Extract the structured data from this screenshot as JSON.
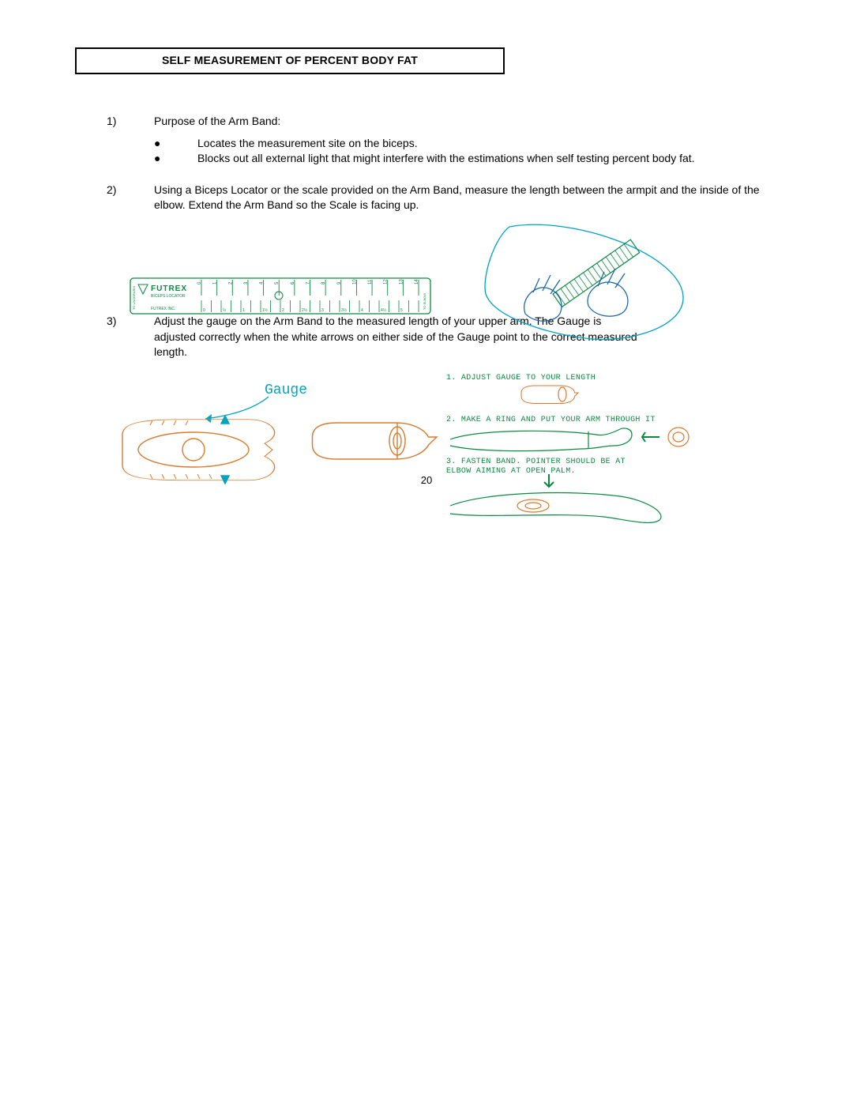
{
  "title": "SELF MEASUREMENT OF PERCENT BODY FAT",
  "page_number": "20",
  "items": {
    "i1": {
      "num": "1)",
      "text": "Purpose of the Arm Band:"
    },
    "b1": "Locates the measurement site on the biceps.",
    "b2": "Blocks out all external light that might interfere with the estimations when self testing percent body fat.",
    "i2": {
      "num": "2)",
      "text": "Using a Biceps Locator or the scale provided on the Arm Band, measure the length between the armpit and the inside of the elbow.  Extend the Arm Band so the Scale is facing up."
    },
    "i3": {
      "num": "3)",
      "text": "Adjust the gauge on the Arm Band to the measured length of your upper arm.  The Gauge is adjusted correctly when the white arrows on either side of the Gauge point to the correct measured length."
    }
  },
  "ruler": {
    "brand": "FUTREX",
    "sub": "BICEPS LOCATOR",
    "company": "FUTREX INC.",
    "left_label": "TO UNDERARM",
    "right_label": "TO ELBOW",
    "ticks": [
      "0",
      "1",
      "2",
      "3",
      "4",
      "5",
      "6",
      "7",
      "8",
      "9",
      "10",
      "11",
      "12",
      "13",
      "14"
    ],
    "halfticks": [
      "0",
      "½",
      "1",
      "1½",
      "2",
      "2½",
      "3",
      "3½",
      "4",
      "4½",
      "5"
    ],
    "color": "#0a8a40"
  },
  "gauge_label": "Gauge",
  "instructions": {
    "s1": "1. ADJUST GAUGE TO YOUR LENGTH",
    "s2": "2. MAKE A RING AND PUT YOUR ARM THROUGH IT",
    "s3a": "3. FASTEN BAND. POINTER SHOULD BE AT",
    "s3b": "   ELBOW AIMING AT OPEN PALM."
  },
  "colors": {
    "green": "#0a8a40",
    "teal": "#00a4bf",
    "orange": "#d97b2e",
    "black": "#000000",
    "blue": "#1060a8"
  }
}
